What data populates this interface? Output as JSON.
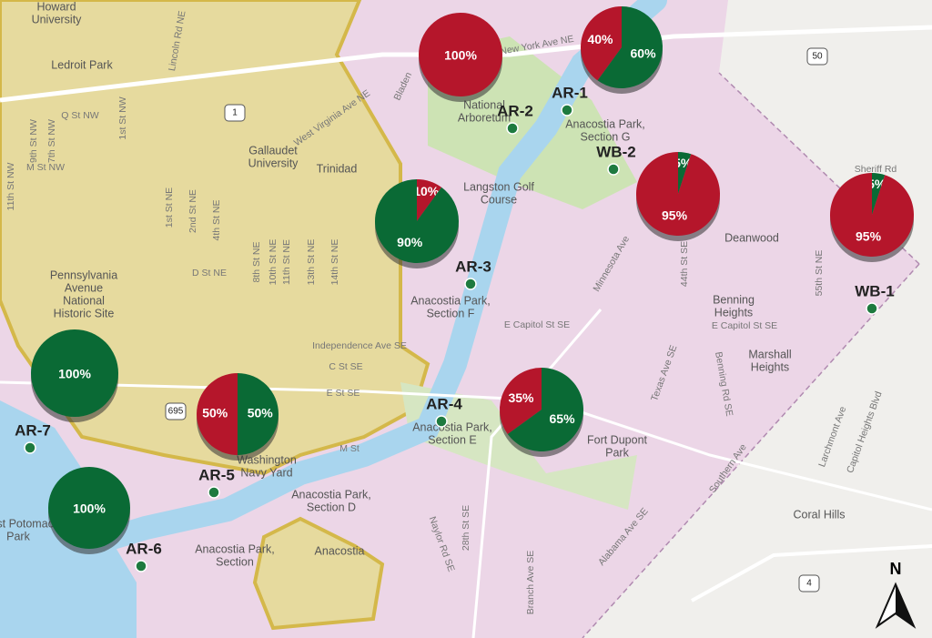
{
  "places": [
    {
      "lines": [
        "Howard",
        "University"
      ]
    },
    {
      "lines": [
        "Ledroit Park"
      ]
    },
    {
      "lines": [
        "Gallaudet",
        "University"
      ]
    },
    {
      "lines": [
        "Trinidad"
      ]
    },
    {
      "lines": [
        "Pennsylvania",
        "Avenue",
        "National",
        "Historic Site"
      ]
    },
    {
      "lines": [
        "National",
        "Arboretum"
      ]
    },
    {
      "lines": [
        "Anacostia Park,",
        "Section G"
      ]
    },
    {
      "lines": [
        "Langston Golf",
        "Course"
      ]
    },
    {
      "lines": [
        "Anacostia Park,",
        "Section F"
      ]
    },
    {
      "lines": [
        "Anacostia Park,",
        "Section E"
      ]
    },
    {
      "lines": [
        "Fort Dupont",
        "Park"
      ]
    },
    {
      "lines": [
        "Anacostia Park,",
        "Section D"
      ]
    },
    {
      "lines": [
        "Anacostia"
      ]
    },
    {
      "lines": [
        "Deanwood"
      ]
    },
    {
      "lines": [
        "Benning",
        "Heights"
      ]
    },
    {
      "lines": [
        "Marshall",
        "Heights"
      ]
    },
    {
      "lines": [
        "Coral Hills"
      ]
    },
    {
      "lines": [
        "Washington",
        "Navy Yard"
      ]
    },
    {
      "lines": [
        "East Potomac",
        "Park"
      ]
    },
    {
      "lines": [
        "Anacostia Park,",
        "Section"
      ]
    }
  ],
  "streets": [
    "New York Ave NE",
    "West Virginia Ave NE",
    "Lincoln Rd NE",
    "Q St NW",
    "M St NW",
    "9th St NW",
    "7th St NW",
    "1st St NW",
    "11th St NW",
    "1st St NE",
    "2nd St NE",
    "4th St NE",
    "D St NE",
    "8th St NE",
    "10th St NE",
    "11th St NE",
    "13th St NE",
    "14th St NE",
    "Independence Ave SE",
    "C St SE",
    "E St SE",
    "E Capitol St SE",
    "E Capitol St SE",
    "Minnesota Ave",
    "Sheriff Rd",
    "Texas Ave SE",
    "Benning Rd SE",
    "44th St SE",
    "55th St NE",
    "Southern Ave",
    "Alabama Ave SE",
    "Naylor Rd SE",
    "28th St SE",
    "Branch Ave SE",
    "Larchmont Ave",
    "Capitol Heights Blvd",
    "M St",
    "Bladen"
  ],
  "shields": [
    "50",
    "1",
    "695",
    "4"
  ],
  "stations": [
    "AR-1",
    "AR-2",
    "AR-3",
    "AR-4",
    "AR-5",
    "AR-6",
    "AR-7",
    "WB-1",
    "WB-2"
  ],
  "pies": [
    {
      "values": [
        100
      ],
      "value_labels": [
        "100%"
      ],
      "colors": [
        "#b5162b"
      ]
    },
    {
      "values": [
        40,
        60
      ],
      "value_labels": [
        "40%",
        "60%"
      ],
      "colors": [
        "#b5162b",
        "#0a6a35"
      ]
    },
    {
      "values": [
        5,
        95
      ],
      "value_labels": [
        "5%",
        "95%"
      ],
      "colors": [
        "#0a6a35",
        "#b5162b"
      ]
    },
    {
      "values": [
        5,
        95
      ],
      "value_labels": [
        "5%",
        "95%"
      ],
      "colors": [
        "#0a6a35",
        "#b5162b"
      ]
    },
    {
      "values": [
        10,
        90
      ],
      "value_labels": [
        "10%",
        "90%"
      ],
      "colors": [
        "#b5162b",
        "#0a6a35"
      ]
    },
    {
      "values": [
        100
      ],
      "value_labels": [
        "100%"
      ],
      "colors": [
        "#0a6a35"
      ]
    },
    {
      "values": [
        50,
        50
      ],
      "value_labels": [
        "50%",
        "50%"
      ],
      "colors": [
        "#b5162b",
        "#0a6a35"
      ]
    },
    {
      "values": [
        35,
        65
      ],
      "value_labels": [
        "35%",
        "65%"
      ],
      "colors": [
        "#b5162b",
        "#0a6a35"
      ]
    },
    {
      "values": [
        100
      ],
      "value_labels": [
        "100%"
      ],
      "colors": [
        "#0a6a35"
      ]
    }
  ],
  "compass": "N"
}
